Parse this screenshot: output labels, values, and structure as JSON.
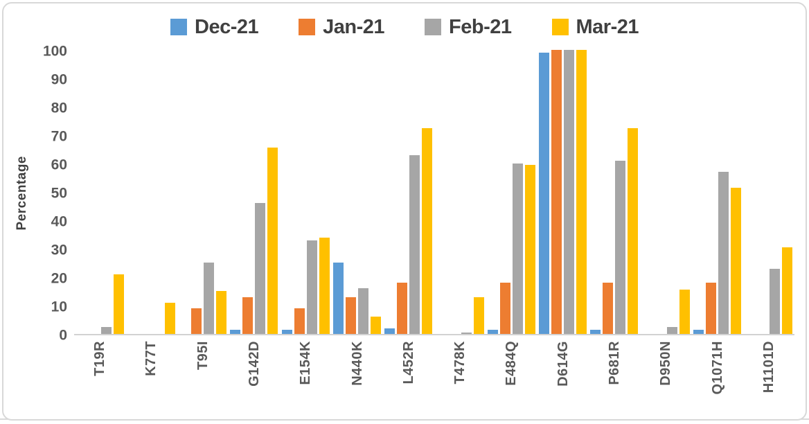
{
  "chart_data": {
    "type": "bar",
    "title": "",
    "xlabel": "",
    "ylabel": "Percentage",
    "ylim": [
      0,
      100
    ],
    "yticks": [
      0,
      10,
      20,
      30,
      40,
      50,
      60,
      70,
      80,
      90,
      100
    ],
    "grid": false,
    "legend_position": "top",
    "categories": [
      "T19R",
      "K77T",
      "T95I",
      "G142D",
      "E154K",
      "N440K",
      "L452R",
      "T478K",
      "E484Q",
      "D614G",
      "P681R",
      "D950N",
      "Q1071H",
      "H1101D"
    ],
    "series": [
      {
        "name": "Dec-21",
        "color": "#5B9BD5",
        "values": [
          0,
          0,
          0,
          1.5,
          1.5,
          25,
          2,
          0,
          1.5,
          99,
          1.5,
          0,
          1.5,
          0
        ]
      },
      {
        "name": "Jan-21",
        "color": "#ED7D31",
        "values": [
          0,
          0,
          9,
          13,
          9,
          13,
          18,
          0,
          18,
          100,
          18,
          0,
          18,
          0
        ]
      },
      {
        "name": "Feb-21",
        "color": "#A6A6A6",
        "values": [
          2.5,
          0,
          25,
          46,
          33,
          16,
          63,
          0.5,
          60,
          100,
          61,
          2.5,
          57,
          23
        ]
      },
      {
        "name": "Mar-21",
        "color": "#FFC000",
        "values": [
          21,
          11,
          15,
          65.5,
          34,
          6,
          72.5,
          13,
          59.5,
          100,
          72.5,
          15.5,
          51.5,
          30.5
        ]
      }
    ]
  },
  "colors": {
    "axis_text": "#595959",
    "legend_text": "#404040",
    "axis_line": "#d2d2d2",
    "frame_border": "#d8d8d8",
    "background": "#ffffff"
  }
}
